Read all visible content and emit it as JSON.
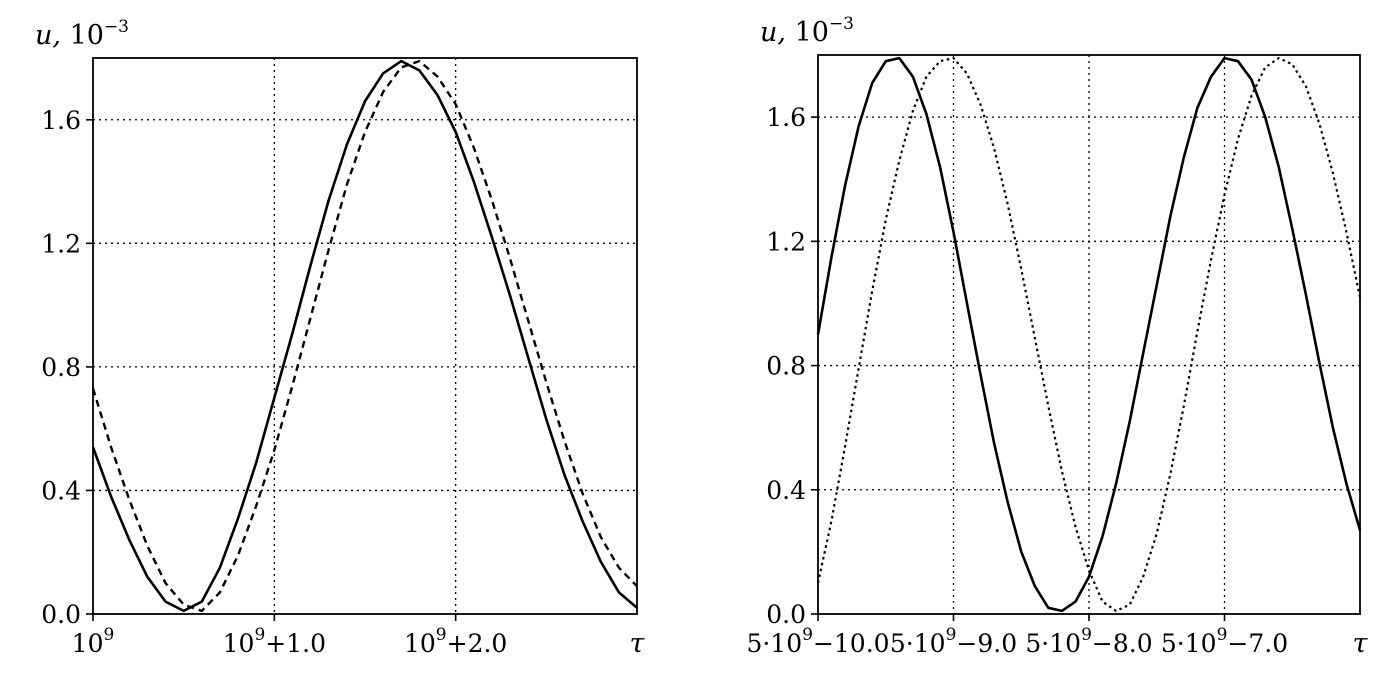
{
  "chart_data": [
    {
      "type": "line",
      "ylabel": {
        "var": "u,",
        "base": "10",
        "exp": "−3"
      },
      "xlabel": "τ",
      "ylim": [
        0,
        1.8
      ],
      "xlim": [
        0,
        3
      ],
      "grid": true,
      "y_ticks": [
        {
          "value": 0.0,
          "label": "0.0"
        },
        {
          "value": 0.4,
          "label": "0.4"
        },
        {
          "value": 0.8,
          "label": "0.8"
        },
        {
          "value": 1.2,
          "label": "1.2"
        },
        {
          "value": 1.6,
          "label": "1.6"
        }
      ],
      "x_ticks": [
        {
          "value": 0,
          "base": "10",
          "exp": "9",
          "rest": ""
        },
        {
          "value": 1,
          "base": "10",
          "exp": "9",
          "rest": "+1.0"
        },
        {
          "value": 2,
          "base": "10",
          "exp": "9",
          "rest": "+2.0"
        }
      ],
      "series": [
        {
          "style": "solid",
          "x": [
            0,
            0.1,
            0.2,
            0.3,
            0.4,
            0.5,
            0.6,
            0.7,
            0.8,
            0.9,
            1.0,
            1.1,
            1.2,
            1.3,
            1.4,
            1.5,
            1.6,
            1.7,
            1.8,
            1.9,
            2.0,
            2.1,
            2.2,
            2.3,
            2.4,
            2.5,
            2.6,
            2.7,
            2.8,
            2.9,
            3.0
          ],
          "y": [
            0.54,
            0.38,
            0.24,
            0.12,
            0.04,
            0.01,
            0.04,
            0.15,
            0.31,
            0.49,
            0.7,
            0.91,
            1.13,
            1.34,
            1.52,
            1.66,
            1.75,
            1.79,
            1.76,
            1.68,
            1.56,
            1.4,
            1.22,
            1.03,
            0.83,
            0.63,
            0.45,
            0.3,
            0.17,
            0.07,
            0.02
          ]
        },
        {
          "style": "dashed",
          "x": [
            0,
            0.1,
            0.2,
            0.3,
            0.4,
            0.5,
            0.6,
            0.7,
            0.8,
            0.9,
            1.0,
            1.1,
            1.2,
            1.3,
            1.4,
            1.5,
            1.6,
            1.7,
            1.8,
            1.9,
            2.0,
            2.1,
            2.2,
            2.3,
            2.4,
            2.5,
            2.6,
            2.7,
            2.8,
            2.9,
            3.0
          ],
          "y": [
            0.73,
            0.54,
            0.37,
            0.22,
            0.1,
            0.03,
            0.01,
            0.07,
            0.19,
            0.35,
            0.53,
            0.74,
            0.96,
            1.18,
            1.39,
            1.56,
            1.69,
            1.77,
            1.79,
            1.74,
            1.65,
            1.51,
            1.34,
            1.15,
            0.95,
            0.75,
            0.56,
            0.39,
            0.25,
            0.15,
            0.09
          ]
        }
      ]
    },
    {
      "type": "line",
      "ylabel": {
        "var": "u,",
        "base": "10",
        "exp": "−3"
      },
      "xlabel": "τ",
      "ylim": [
        0,
        1.8
      ],
      "xlim": [
        0,
        4
      ],
      "grid": true,
      "y_ticks": [
        {
          "value": 0.0,
          "label": "0.0"
        },
        {
          "value": 0.4,
          "label": "0.4"
        },
        {
          "value": 0.8,
          "label": "0.8"
        },
        {
          "value": 1.2,
          "label": "1.2"
        },
        {
          "value": 1.6,
          "label": "1.6"
        }
      ],
      "x_ticks": [
        {
          "value": 0,
          "base": "5·10",
          "exp": "9",
          "rest": "−10.0"
        },
        {
          "value": 1,
          "base": "5·10",
          "exp": "9",
          "rest": "−9.0"
        },
        {
          "value": 2,
          "base": "5·10",
          "exp": "9",
          "rest": "−8.0"
        },
        {
          "value": 3,
          "base": "5·10",
          "exp": "9",
          "rest": "−7.0"
        }
      ],
      "series": [
        {
          "style": "solid",
          "x": [
            0,
            0.1,
            0.2,
            0.3,
            0.4,
            0.5,
            0.6,
            0.7,
            0.8,
            0.9,
            1.0,
            1.1,
            1.2,
            1.3,
            1.4,
            1.5,
            1.6,
            1.7,
            1.8,
            1.9,
            2.0,
            2.1,
            2.2,
            2.3,
            2.4,
            2.5,
            2.6,
            2.7,
            2.8,
            2.9,
            3.0,
            3.1,
            3.2,
            3.3,
            3.4,
            3.5,
            3.6,
            3.7,
            3.8,
            3.9,
            4.0
          ],
          "y": [
            0.9,
            1.15,
            1.38,
            1.57,
            1.71,
            1.78,
            1.79,
            1.73,
            1.61,
            1.44,
            1.23,
            1.0,
            0.77,
            0.55,
            0.36,
            0.2,
            0.09,
            0.02,
            0.01,
            0.04,
            0.12,
            0.25,
            0.42,
            0.62,
            0.84,
            1.06,
            1.28,
            1.47,
            1.63,
            1.73,
            1.79,
            1.78,
            1.72,
            1.6,
            1.44,
            1.24,
            1.03,
            0.81,
            0.6,
            0.42,
            0.27
          ]
        },
        {
          "style": "dotted",
          "x": [
            0,
            0.1,
            0.2,
            0.3,
            0.4,
            0.5,
            0.6,
            0.7,
            0.8,
            0.9,
            1.0,
            1.1,
            1.2,
            1.3,
            1.4,
            1.5,
            1.6,
            1.7,
            1.8,
            1.9,
            2.0,
            2.1,
            2.2,
            2.3,
            2.4,
            2.5,
            2.6,
            2.7,
            2.8,
            2.9,
            3.0,
            3.1,
            3.2,
            3.3,
            3.4,
            3.5,
            3.6,
            3.7,
            3.8,
            3.9,
            4.0
          ],
          "y": [
            0.1,
            0.3,
            0.54,
            0.79,
            1.04,
            1.27,
            1.46,
            1.62,
            1.73,
            1.78,
            1.79,
            1.74,
            1.64,
            1.5,
            1.32,
            1.11,
            0.89,
            0.67,
            0.46,
            0.28,
            0.14,
            0.04,
            0.01,
            0.03,
            0.12,
            0.26,
            0.45,
            0.67,
            0.91,
            1.14,
            1.35,
            1.53,
            1.67,
            1.76,
            1.79,
            1.77,
            1.7,
            1.58,
            1.42,
            1.23,
            1.02
          ]
        }
      ]
    }
  ]
}
